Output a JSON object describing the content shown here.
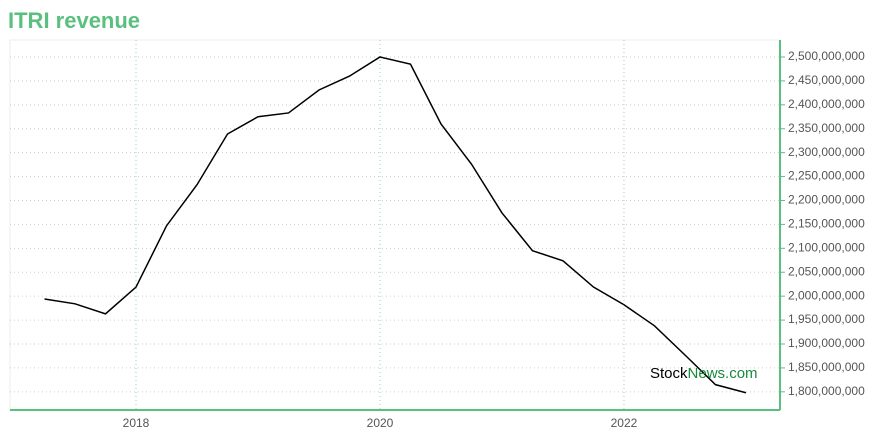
{
  "chart_data": {
    "type": "line",
    "title": "ITRI revenue",
    "watermark": [
      "Stock",
      "News.com"
    ],
    "x": [
      2017.25,
      2017.5,
      2017.75,
      2018.0,
      2018.25,
      2018.5,
      2018.75,
      2019.0,
      2019.25,
      2019.5,
      2019.75,
      2020.0,
      2020.25,
      2020.5,
      2020.75,
      2021.0,
      2021.25,
      2021.5,
      2021.75,
      2022.0,
      2022.25,
      2022.5,
      2022.75,
      2023.0
    ],
    "values": [
      1994000000,
      1984000000,
      1963000000,
      2019000000,
      2147000000,
      2233000000,
      2339000000,
      2375000000,
      2383000000,
      2431000000,
      2460000000,
      2500000000,
      2485000000,
      2360000000,
      2276000000,
      2174000000,
      2095000000,
      2074000000,
      2019000000,
      1982000000,
      1938000000,
      1877000000,
      1815000000,
      1798000000
    ],
    "color": "#000000",
    "xlim": [
      2016.967,
      2023.279
    ],
    "xticks": [
      2018,
      2020,
      2022
    ],
    "ylim": [
      1762000000,
      2535500000
    ],
    "yticks": [
      {
        "value": 1800000000,
        "label": "1,800,000,000"
      },
      {
        "value": 1850000000,
        "label": "1,850,000,000"
      },
      {
        "value": 1900000000,
        "label": "1,900,000,000"
      },
      {
        "value": 1950000000,
        "label": "1,950,000,000"
      },
      {
        "value": 2000000000,
        "label": "2,000,000,000"
      },
      {
        "value": 2050000000,
        "label": "2,050,000,000"
      },
      {
        "value": 2100000000,
        "label": "2,100,000,000"
      },
      {
        "value": 2150000000,
        "label": "2,150,000,000"
      },
      {
        "value": 2200000000,
        "label": "2,200,000,000"
      },
      {
        "value": 2250000000,
        "label": "2,250,000,000"
      },
      {
        "value": 2300000000,
        "label": "2,300,000,000"
      },
      {
        "value": 2350000000,
        "label": "2,350,000,000"
      },
      {
        "value": 2400000000,
        "label": "2,400,000,000"
      },
      {
        "value": 2450000000,
        "label": "2,450,000,000"
      },
      {
        "value": 2500000000,
        "label": "2,500,000,000"
      }
    ],
    "grid": true
  }
}
